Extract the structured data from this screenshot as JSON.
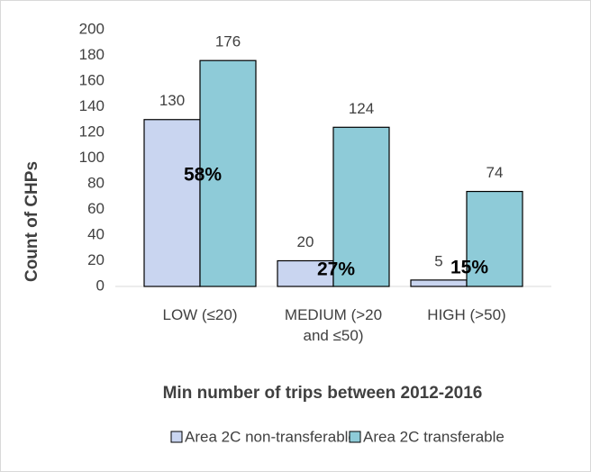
{
  "chart_data": {
    "type": "bar",
    "categories": [
      "LOW (≤20)",
      "MEDIUM (>20 and ≤50)",
      "HIGH (>50)"
    ],
    "series": [
      {
        "name": "Area 2C non-transferable",
        "color": "#c9d5f0",
        "values": [
          130,
          20,
          5
        ]
      },
      {
        "name": "Area 2C transferable",
        "color": "#8ecbd8",
        "values": [
          176,
          124,
          74
        ]
      }
    ],
    "annotations": [
      "58%",
      "27%",
      "15%"
    ],
    "x_label": "Min number of trips between 2012-2016",
    "y_label": "Count of CHPs",
    "ylim": [
      0,
      200
    ],
    "yticks": [
      0,
      20,
      40,
      60,
      80,
      100,
      120,
      140,
      160,
      180,
      200
    ],
    "grid": false,
    "legend": "bottom"
  }
}
